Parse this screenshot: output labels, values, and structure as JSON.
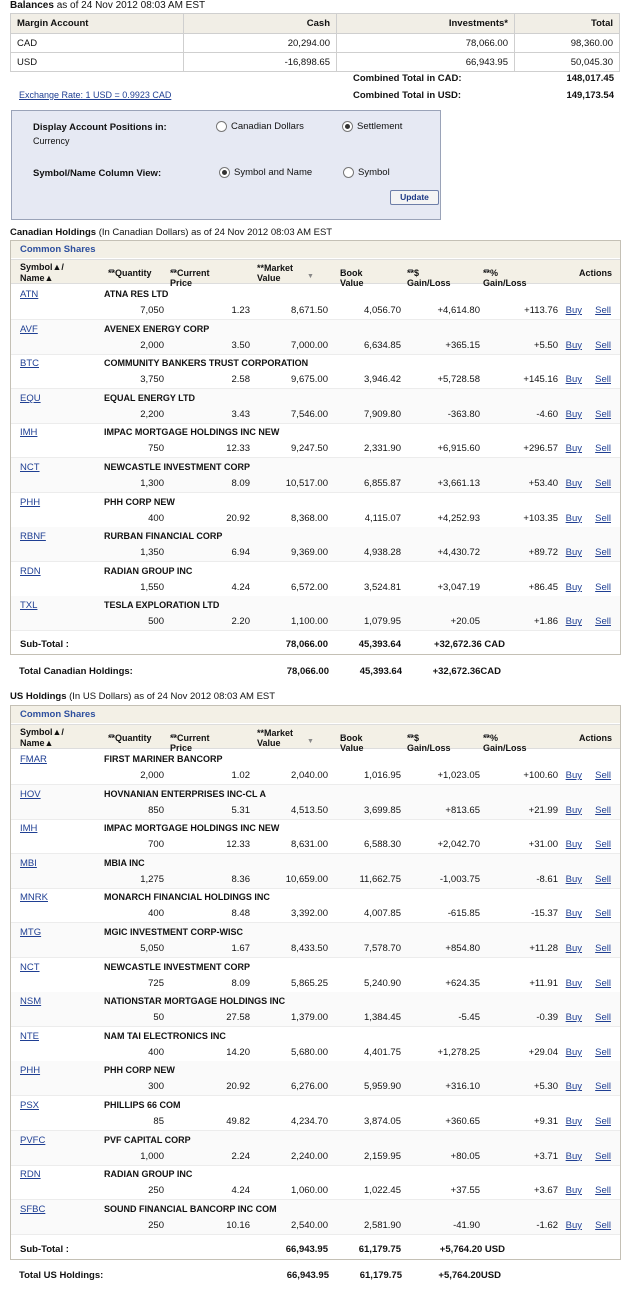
{
  "balances": {
    "title": "Balances",
    "asof": "as of 24 Nov 2012 08:03 AM EST",
    "headers": [
      "Margin Account",
      "Cash",
      "Investments*",
      "Total"
    ],
    "rows": [
      {
        "cur": "CAD",
        "cash": "20,294.00",
        "inv": "78,066.00",
        "total": "98,360.00"
      },
      {
        "cur": "USD",
        "cash": "-16,898.65",
        "inv": "66,943.95",
        "total": "50,045.30"
      }
    ],
    "combined_cad_label": "Combined Total in CAD:",
    "combined_cad": "148,017.45",
    "combined_usd_label": "Combined Total in USD:",
    "combined_usd": "149,173.54",
    "exchange_rate": "Exchange Rate: 1 USD = 0.9923 CAD"
  },
  "display": {
    "positions_label": "Display Account Positions in:",
    "currency_label": "Currency",
    "opt_cad": "Canadian Dollars",
    "opt_settlement": "Settlement",
    "view_label": "Symbol/Name Column View:",
    "opt_symname": "Symbol and Name",
    "opt_sym": "Symbol",
    "update": "Update"
  },
  "columns": {
    "symbol": "Symbol▲/",
    "name": "Name▲",
    "qty": "**Quantity",
    "price": "**Current Price",
    "mv": "**Market Value",
    "bv": "Book Value",
    "gl": "**$ Gain/Loss",
    "pct": "**% Gain/Loss",
    "actions": "Actions"
  },
  "common_shares": "Common Shares",
  "buy": "Buy",
  "sell": "Sell",
  "subtotal_label": "Sub-Total :",
  "canadian": {
    "title": "Canadian Holdings",
    "subtitle": "(In Canadian Dollars) as of 24 Nov 2012 08:03 AM EST",
    "rows": [
      {
        "sym": "ATN",
        "name": "ATNA RES LTD",
        "qty": "7,050",
        "price": "1.23",
        "mv": "8,671.50",
        "bv": "4,056.70",
        "gl": "+4,614.80",
        "pct": "+113.76"
      },
      {
        "sym": "AVF",
        "name": "AVENEX ENERGY CORP",
        "qty": "2,000",
        "price": "3.50",
        "mv": "7,000.00",
        "bv": "6,634.85",
        "gl": "+365.15",
        "pct": "+5.50"
      },
      {
        "sym": "BTC",
        "name": "COMMUNITY BANKERS TRUST CORPORATION",
        "qty": "3,750",
        "price": "2.58",
        "mv": "9,675.00",
        "bv": "3,946.42",
        "gl": "+5,728.58",
        "pct": "+145.16"
      },
      {
        "sym": "EQU",
        "name": "EQUAL ENERGY LTD",
        "qty": "2,200",
        "price": "3.43",
        "mv": "7,546.00",
        "bv": "7,909.80",
        "gl": "-363.80",
        "pct": "-4.60"
      },
      {
        "sym": "IMH",
        "name": "IMPAC MORTGAGE HOLDINGS INC NEW",
        "qty": "750",
        "price": "12.33",
        "mv": "9,247.50",
        "bv": "2,331.90",
        "gl": "+6,915.60",
        "pct": "+296.57"
      },
      {
        "sym": "NCT",
        "name": "NEWCASTLE INVESTMENT CORP",
        "qty": "1,300",
        "price": "8.09",
        "mv": "10,517.00",
        "bv": "6,855.87",
        "gl": "+3,661.13",
        "pct": "+53.40"
      },
      {
        "sym": "PHH",
        "name": "PHH CORP NEW",
        "qty": "400",
        "price": "20.92",
        "mv": "8,368.00",
        "bv": "4,115.07",
        "gl": "+4,252.93",
        "pct": "+103.35"
      },
      {
        "sym": "RBNF",
        "name": "RURBAN FINANCIAL CORP",
        "qty": "1,350",
        "price": "6.94",
        "mv": "9,369.00",
        "bv": "4,938.28",
        "gl": "+4,430.72",
        "pct": "+89.72"
      },
      {
        "sym": "RDN",
        "name": "RADIAN GROUP INC",
        "qty": "1,550",
        "price": "4.24",
        "mv": "6,572.00",
        "bv": "3,524.81",
        "gl": "+3,047.19",
        "pct": "+86.45"
      },
      {
        "sym": "TXL",
        "name": "TESLA EXPLORATION LTD",
        "qty": "500",
        "price": "2.20",
        "mv": "1,100.00",
        "bv": "1,079.95",
        "gl": "+20.05",
        "pct": "+1.86"
      }
    ],
    "subtotal": {
      "mv": "78,066.00",
      "bv": "45,393.64",
      "gl": "+32,672.36 CAD"
    },
    "total_label": "Total Canadian Holdings:",
    "total": {
      "mv": "78,066.00",
      "bv": "45,393.64",
      "gl": "+32,672.36CAD"
    }
  },
  "us": {
    "title": "US Holdings",
    "subtitle": "(In US Dollars) as of 24 Nov 2012 08:03 AM EST",
    "rows": [
      {
        "sym": "FMAR",
        "name": "FIRST MARINER BANCORP",
        "qty": "2,000",
        "price": "1.02",
        "mv": "2,040.00",
        "bv": "1,016.95",
        "gl": "+1,023.05",
        "pct": "+100.60"
      },
      {
        "sym": "HOV",
        "name": "HOVNANIAN ENTERPRISES INC-CL A",
        "qty": "850",
        "price": "5.31",
        "mv": "4,513.50",
        "bv": "3,699.85",
        "gl": "+813.65",
        "pct": "+21.99"
      },
      {
        "sym": "IMH",
        "name": "IMPAC MORTGAGE HOLDINGS INC NEW",
        "qty": "700",
        "price": "12.33",
        "mv": "8,631.00",
        "bv": "6,588.30",
        "gl": "+2,042.70",
        "pct": "+31.00"
      },
      {
        "sym": "MBI",
        "name": "MBIA INC",
        "qty": "1,275",
        "price": "8.36",
        "mv": "10,659.00",
        "bv": "11,662.75",
        "gl": "-1,003.75",
        "pct": "-8.61"
      },
      {
        "sym": "MNRK",
        "name": "MONARCH FINANCIAL HOLDINGS INC",
        "qty": "400",
        "price": "8.48",
        "mv": "3,392.00",
        "bv": "4,007.85",
        "gl": "-615.85",
        "pct": "-15.37"
      },
      {
        "sym": "MTG",
        "name": "MGIC INVESTMENT CORP-WISC",
        "qty": "5,050",
        "price": "1.67",
        "mv": "8,433.50",
        "bv": "7,578.70",
        "gl": "+854.80",
        "pct": "+11.28"
      },
      {
        "sym": "NCT",
        "name": "NEWCASTLE INVESTMENT CORP",
        "qty": "725",
        "price": "8.09",
        "mv": "5,865.25",
        "bv": "5,240.90",
        "gl": "+624.35",
        "pct": "+11.91"
      },
      {
        "sym": "NSM",
        "name": "NATIONSTAR MORTGAGE HOLDINGS INC",
        "qty": "50",
        "price": "27.58",
        "mv": "1,379.00",
        "bv": "1,384.45",
        "gl": "-5.45",
        "pct": "-0.39"
      },
      {
        "sym": "NTE",
        "name": "NAM TAI ELECTRONICS INC",
        "qty": "400",
        "price": "14.20",
        "mv": "5,680.00",
        "bv": "4,401.75",
        "gl": "+1,278.25",
        "pct": "+29.04"
      },
      {
        "sym": "PHH",
        "name": "PHH CORP NEW",
        "qty": "300",
        "price": "20.92",
        "mv": "6,276.00",
        "bv": "5,959.90",
        "gl": "+316.10",
        "pct": "+5.30"
      },
      {
        "sym": "PSX",
        "name": "PHILLIPS 66 COM",
        "qty": "85",
        "price": "49.82",
        "mv": "4,234.70",
        "bv": "3,874.05",
        "gl": "+360.65",
        "pct": "+9.31"
      },
      {
        "sym": "PVFC",
        "name": "PVF CAPITAL CORP",
        "qty": "1,000",
        "price": "2.24",
        "mv": "2,240.00",
        "bv": "2,159.95",
        "gl": "+80.05",
        "pct": "+3.71"
      },
      {
        "sym": "RDN",
        "name": "RADIAN GROUP INC",
        "qty": "250",
        "price": "4.24",
        "mv": "1,060.00",
        "bv": "1,022.45",
        "gl": "+37.55",
        "pct": "+3.67"
      },
      {
        "sym": "SFBC",
        "name": "SOUND FINANCIAL BANCORP INC COM",
        "qty": "250",
        "price": "10.16",
        "mv": "2,540.00",
        "bv": "2,581.90",
        "gl": "-41.90",
        "pct": "-1.62"
      }
    ],
    "subtotal": {
      "mv": "66,943.95",
      "bv": "61,179.75",
      "gl": "+5,764.20 USD"
    },
    "total_label": "Total US Holdings:",
    "total": {
      "mv": "66,943.95",
      "bv": "61,179.75",
      "gl": "+5,764.20USD"
    }
  }
}
